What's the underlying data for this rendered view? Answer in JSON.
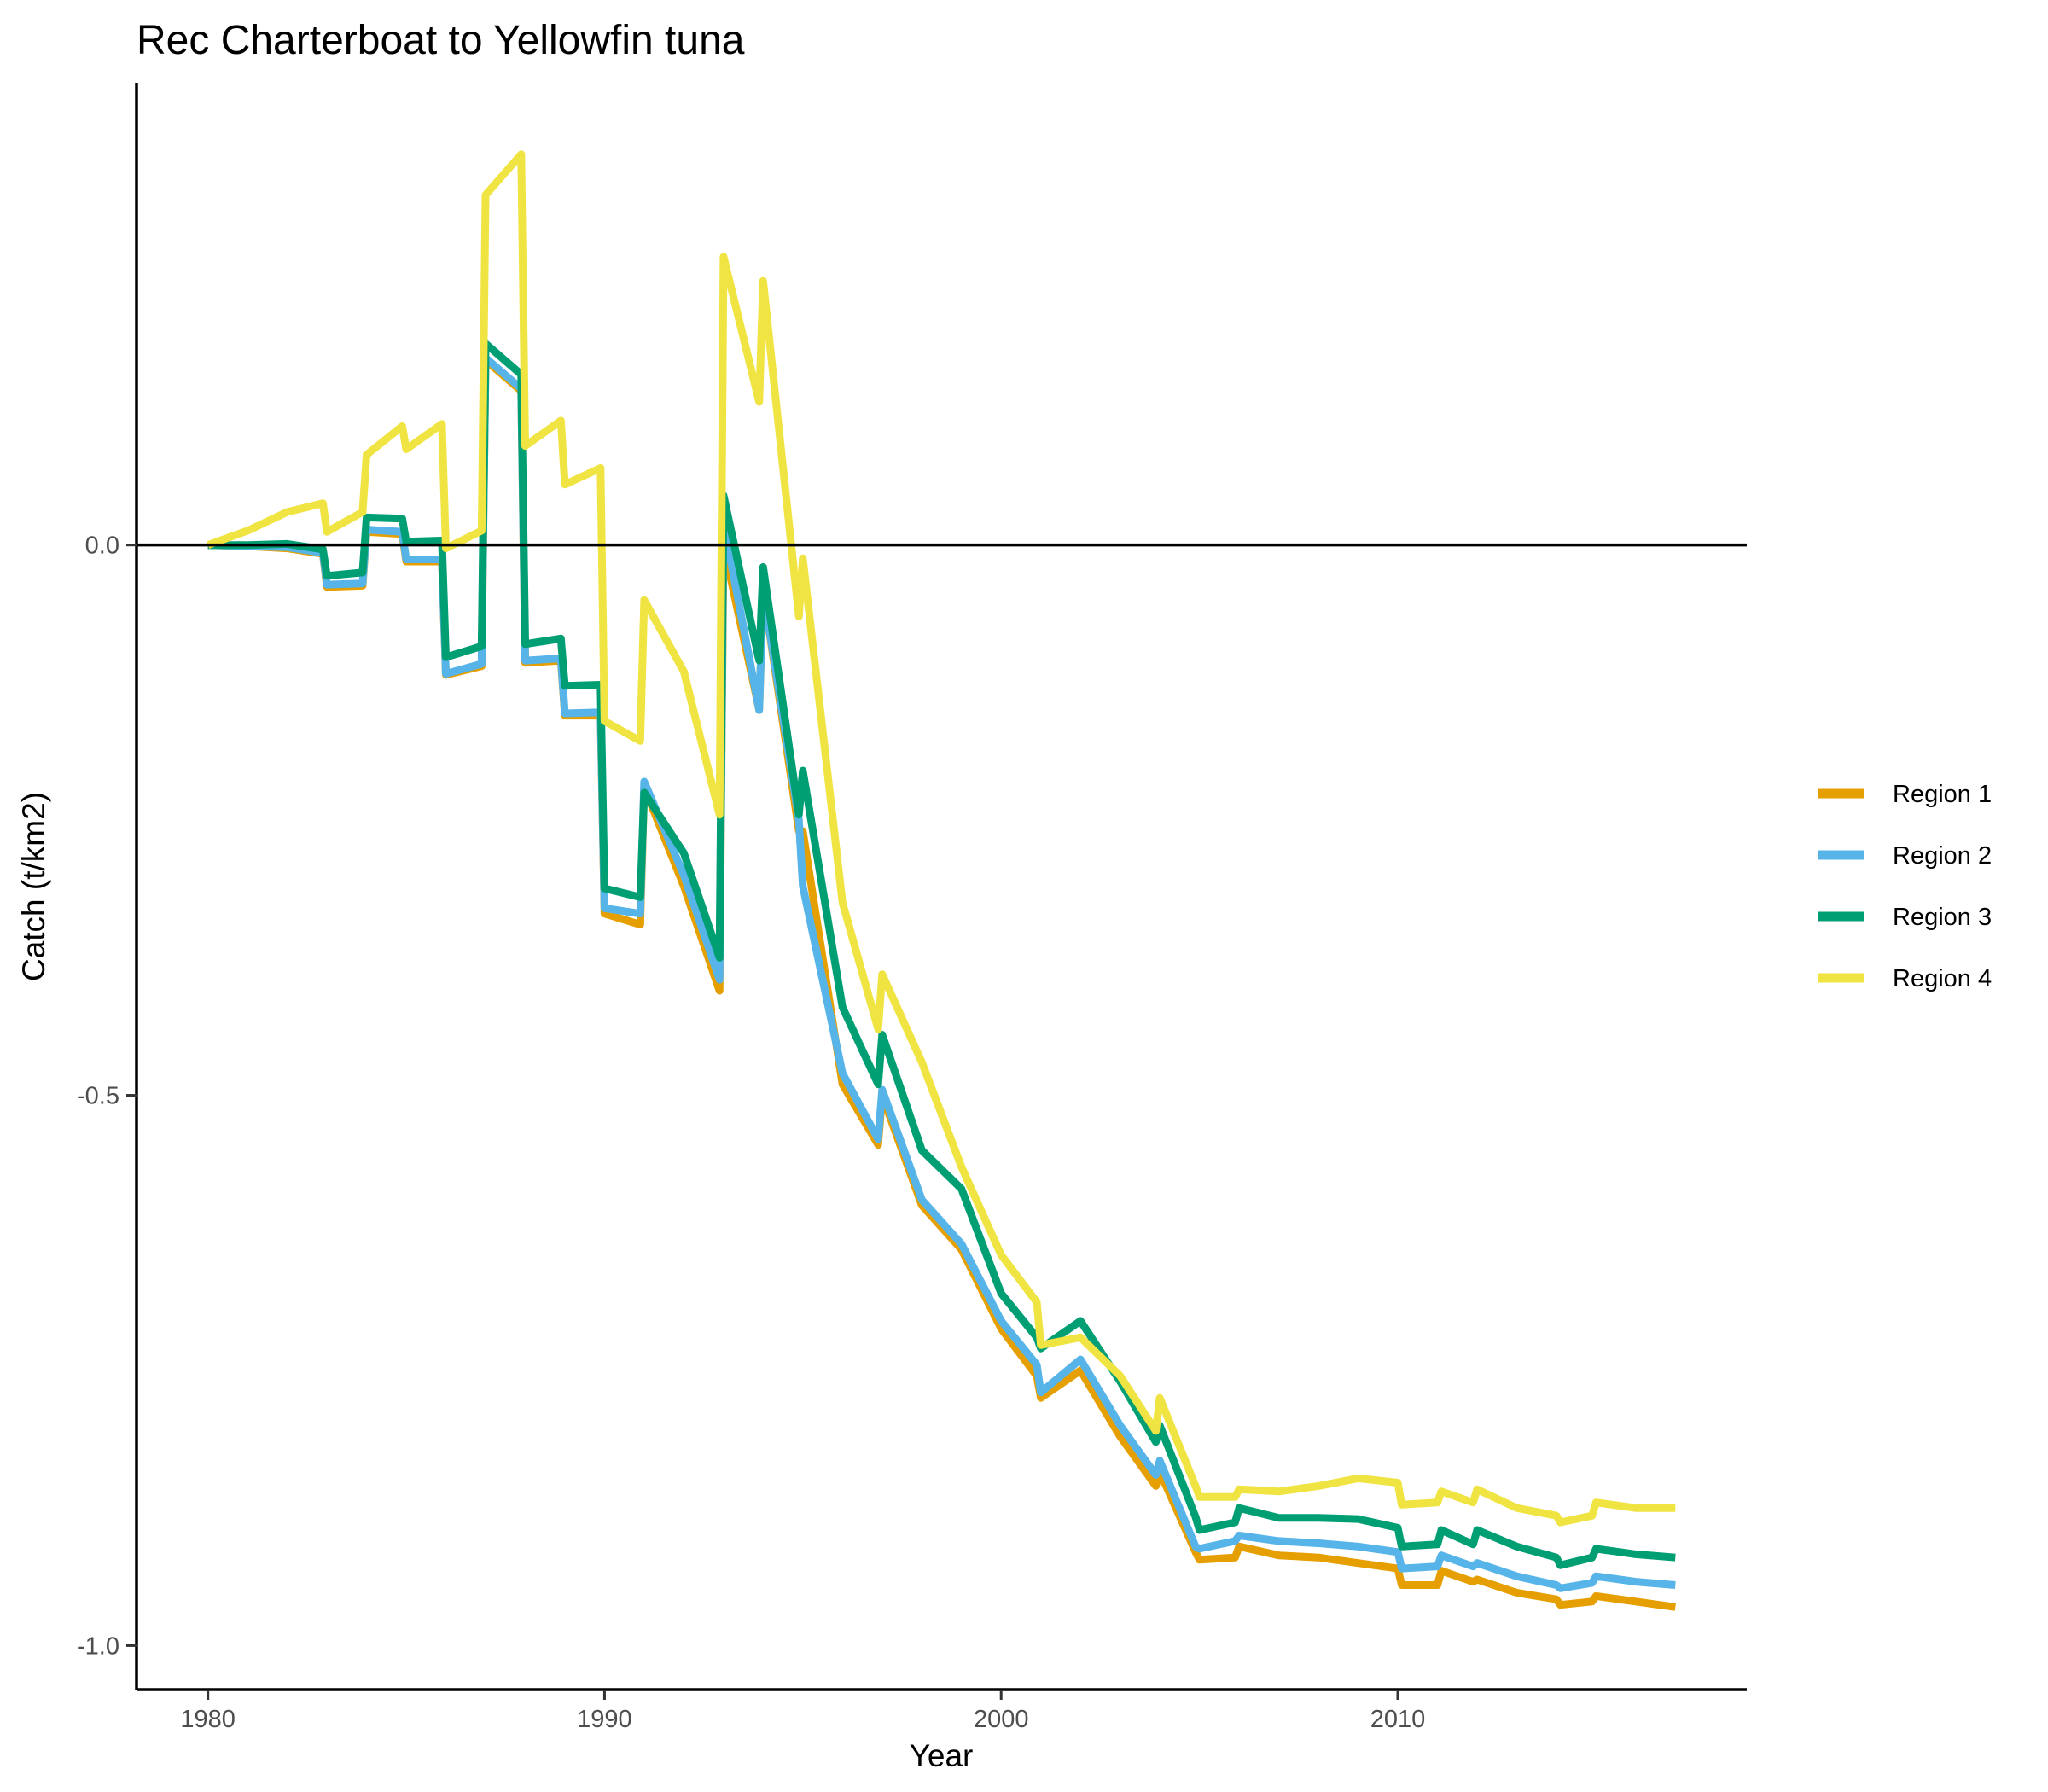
{
  "chart_data": {
    "type": "line",
    "title": "Rec Charterboat to Yellowfin tuna",
    "xlabel": "Year",
    "ylabel": "Catch (t/km2)",
    "xlim": [
      1978.2,
      2018.8
    ],
    "ylim": [
      -1.04,
      0.42
    ],
    "x_ticks": [
      1980,
      1990,
      2000,
      2010
    ],
    "x_tick_labels": [
      "1980",
      "1990",
      "2000",
      "2010"
    ],
    "y_ticks": [
      0.0,
      -0.5,
      -1.0
    ],
    "y_tick_labels": [
      "0.0",
      "-0.5",
      "-1.0"
    ],
    "reference_line_y": 0,
    "grid": false,
    "legend_position": "right",
    "series": [
      {
        "name": "Region 1",
        "color": "#E69F00",
        "points": [
          [
            1980,
            0
          ],
          [
            1981,
            -0.001
          ],
          [
            1982,
            -0.003
          ],
          [
            1982.9,
            -0.008
          ],
          [
            1983,
            -0.038
          ],
          [
            1983.9,
            -0.037
          ],
          [
            1984,
            0.012
          ],
          [
            1984.9,
            0.01
          ],
          [
            1985,
            -0.015
          ],
          [
            1985.9,
            -0.015
          ],
          [
            1986,
            -0.118
          ],
          [
            1986.9,
            -0.11
          ],
          [
            1987,
            0.168
          ],
          [
            1987.9,
            0.14
          ],
          [
            1988,
            -0.107
          ],
          [
            1988.9,
            -0.105
          ],
          [
            1989,
            -0.155
          ],
          [
            1989.9,
            -0.155
          ],
          [
            1990,
            -0.335
          ],
          [
            1990.9,
            -0.345
          ],
          [
            1991,
            -0.22
          ],
          [
            1992,
            -0.31
          ],
          [
            1992.9,
            -0.405
          ],
          [
            1993,
            0.0
          ],
          [
            1993.9,
            -0.15
          ],
          [
            1994,
            -0.04
          ],
          [
            1994.9,
            -0.26
          ],
          [
            1995,
            -0.26
          ],
          [
            1996,
            -0.49
          ],
          [
            1996.9,
            -0.545
          ],
          [
            1997,
            -0.5
          ],
          [
            1998,
            -0.6
          ],
          [
            1999,
            -0.64
          ],
          [
            2000,
            -0.712
          ],
          [
            2000.9,
            -0.755
          ],
          [
            2001,
            -0.775
          ],
          [
            2002,
            -0.75
          ],
          [
            2003,
            -0.81
          ],
          [
            2003.9,
            -0.855
          ],
          [
            2004,
            -0.842
          ],
          [
            2004.9,
            -0.915
          ],
          [
            2005,
            -0.922
          ],
          [
            2005.9,
            -0.92
          ],
          [
            2006,
            -0.91
          ],
          [
            2007,
            -0.918
          ],
          [
            2008,
            -0.92
          ],
          [
            2009,
            -0.925
          ],
          [
            2010,
            -0.93
          ],
          [
            2010.1,
            -0.945
          ],
          [
            2011,
            -0.945
          ],
          [
            2011.1,
            -0.932
          ],
          [
            2011.9,
            -0.942
          ],
          [
            2012,
            -0.94
          ],
          [
            2013,
            -0.952
          ],
          [
            2014,
            -0.958
          ],
          [
            2014.1,
            -0.963
          ],
          [
            2014.9,
            -0.96
          ],
          [
            2015,
            -0.955
          ],
          [
            2016,
            -0.96
          ],
          [
            2017,
            -0.965
          ]
        ]
      },
      {
        "name": "Region 2",
        "color": "#56B4E9",
        "points": [
          [
            1980,
            0
          ],
          [
            1981,
            -0.001
          ],
          [
            1982,
            -0.002
          ],
          [
            1982.9,
            -0.007
          ],
          [
            1983,
            -0.036
          ],
          [
            1983.9,
            -0.035
          ],
          [
            1984,
            0.014
          ],
          [
            1984.9,
            0.012
          ],
          [
            1985,
            -0.013
          ],
          [
            1985.9,
            -0.013
          ],
          [
            1986,
            -0.117
          ],
          [
            1986.9,
            -0.108
          ],
          [
            1987,
            0.17
          ],
          [
            1987.9,
            0.142
          ],
          [
            1988,
            -0.105
          ],
          [
            1988.9,
            -0.103
          ],
          [
            1989,
            -0.153
          ],
          [
            1989.9,
            -0.152
          ],
          [
            1990,
            -0.33
          ],
          [
            1990.9,
            -0.335
          ],
          [
            1991,
            -0.215
          ],
          [
            1992,
            -0.3
          ],
          [
            1992.9,
            -0.395
          ],
          [
            1993,
            0.02
          ],
          [
            1993.9,
            -0.15
          ],
          [
            1994,
            -0.04
          ],
          [
            1994.9,
            -0.25
          ],
          [
            1995,
            -0.31
          ],
          [
            1996,
            -0.48
          ],
          [
            1996.9,
            -0.54
          ],
          [
            1997,
            -0.495
          ],
          [
            1998,
            -0.595
          ],
          [
            1999,
            -0.635
          ],
          [
            2000,
            -0.705
          ],
          [
            2000.9,
            -0.745
          ],
          [
            2001,
            -0.77
          ],
          [
            2002,
            -0.74
          ],
          [
            2003,
            -0.8
          ],
          [
            2003.9,
            -0.845
          ],
          [
            2004,
            -0.832
          ],
          [
            2004.9,
            -0.91
          ],
          [
            2005,
            -0.912
          ],
          [
            2005.9,
            -0.905
          ],
          [
            2006,
            -0.9
          ],
          [
            2007,
            -0.905
          ],
          [
            2008,
            -0.907
          ],
          [
            2009,
            -0.91
          ],
          [
            2010,
            -0.915
          ],
          [
            2010.1,
            -0.93
          ],
          [
            2011,
            -0.928
          ],
          [
            2011.1,
            -0.918
          ],
          [
            2011.9,
            -0.928
          ],
          [
            2012,
            -0.925
          ],
          [
            2013,
            -0.937
          ],
          [
            2014,
            -0.945
          ],
          [
            2014.1,
            -0.948
          ],
          [
            2014.9,
            -0.943
          ],
          [
            2015,
            -0.937
          ],
          [
            2016,
            -0.942
          ],
          [
            2017,
            -0.945
          ]
        ]
      },
      {
        "name": "Region 3",
        "color": "#009E73",
        "points": [
          [
            1980,
            0
          ],
          [
            1981,
            0.0
          ],
          [
            1982,
            0.001
          ],
          [
            1982.9,
            -0.004
          ],
          [
            1983,
            -0.028
          ],
          [
            1983.9,
            -0.025
          ],
          [
            1984,
            0.025
          ],
          [
            1984.9,
            0.024
          ],
          [
            1985,
            0.003
          ],
          [
            1985.9,
            0.004
          ],
          [
            1986,
            -0.102
          ],
          [
            1986.9,
            -0.092
          ],
          [
            1987,
            0.183
          ],
          [
            1987.9,
            0.155
          ],
          [
            1988,
            -0.09
          ],
          [
            1988.9,
            -0.085
          ],
          [
            1989,
            -0.128
          ],
          [
            1989.9,
            -0.127
          ],
          [
            1990,
            -0.312
          ],
          [
            1990.9,
            -0.32
          ],
          [
            1991,
            -0.225
          ],
          [
            1992,
            -0.28
          ],
          [
            1992.9,
            -0.375
          ],
          [
            1993,
            0.045
          ],
          [
            1993.9,
            -0.105
          ],
          [
            1994,
            -0.02
          ],
          [
            1994.9,
            -0.245
          ],
          [
            1995,
            -0.205
          ],
          [
            1996,
            -0.42
          ],
          [
            1996.9,
            -0.49
          ],
          [
            1997,
            -0.445
          ],
          [
            1998,
            -0.55
          ],
          [
            1999,
            -0.585
          ],
          [
            2000,
            -0.68
          ],
          [
            2000.9,
            -0.72
          ],
          [
            2001,
            -0.73
          ],
          [
            2002,
            -0.705
          ],
          [
            2003,
            -0.76
          ],
          [
            2003.9,
            -0.815
          ],
          [
            2004,
            -0.8
          ],
          [
            2004.9,
            -0.883
          ],
          [
            2005,
            -0.895
          ],
          [
            2005.9,
            -0.888
          ],
          [
            2006,
            -0.875
          ],
          [
            2007,
            -0.884
          ],
          [
            2008,
            -0.884
          ],
          [
            2009,
            -0.885
          ],
          [
            2010,
            -0.893
          ],
          [
            2010.1,
            -0.91
          ],
          [
            2011,
            -0.908
          ],
          [
            2011.1,
            -0.895
          ],
          [
            2011.9,
            -0.908
          ],
          [
            2012,
            -0.895
          ],
          [
            2013,
            -0.91
          ],
          [
            2014,
            -0.92
          ],
          [
            2014.1,
            -0.927
          ],
          [
            2014.9,
            -0.92
          ],
          [
            2015,
            -0.912
          ],
          [
            2016,
            -0.917
          ],
          [
            2017,
            -0.92
          ]
        ]
      },
      {
        "name": "Region 4",
        "color": "#F0E442",
        "points": [
          [
            1980,
            0
          ],
          [
            1981,
            0.013
          ],
          [
            1982,
            0.03
          ],
          [
            1982.9,
            0.038
          ],
          [
            1983,
            0.012
          ],
          [
            1983.9,
            0.03
          ],
          [
            1984,
            0.082
          ],
          [
            1984.9,
            0.108
          ],
          [
            1985,
            0.087
          ],
          [
            1985.9,
            0.11
          ],
          [
            1986,
            -0.003
          ],
          [
            1986.9,
            0.013
          ],
          [
            1987,
            0.318
          ],
          [
            1987.9,
            0.355
          ],
          [
            1988,
            0.09
          ],
          [
            1988.9,
            0.113
          ],
          [
            1989,
            0.055
          ],
          [
            1989.9,
            0.07
          ],
          [
            1990,
            -0.16
          ],
          [
            1990.9,
            -0.178
          ],
          [
            1991,
            -0.05
          ],
          [
            1992,
            -0.115
          ],
          [
            1992.9,
            -0.245
          ],
          [
            1993,
            0.262
          ],
          [
            1993.9,
            0.13
          ],
          [
            1994,
            0.24
          ],
          [
            1994.9,
            -0.065
          ],
          [
            1995,
            -0.012
          ],
          [
            1996,
            -0.325
          ],
          [
            1996.9,
            -0.44
          ],
          [
            1997,
            -0.39
          ],
          [
            1998,
            -0.47
          ],
          [
            1999,
            -0.565
          ],
          [
            2000,
            -0.645
          ],
          [
            2000.9,
            -0.688
          ],
          [
            2001,
            -0.727
          ],
          [
            2002,
            -0.72
          ],
          [
            2003,
            -0.755
          ],
          [
            2003.9,
            -0.805
          ],
          [
            2004,
            -0.775
          ],
          [
            2004.9,
            -0.855
          ],
          [
            2005,
            -0.865
          ],
          [
            2005.9,
            -0.865
          ],
          [
            2006,
            -0.858
          ],
          [
            2007,
            -0.86
          ],
          [
            2008,
            -0.855
          ],
          [
            2009,
            -0.848
          ],
          [
            2010,
            -0.852
          ],
          [
            2010.1,
            -0.872
          ],
          [
            2011,
            -0.87
          ],
          [
            2011.1,
            -0.86
          ],
          [
            2011.9,
            -0.87
          ],
          [
            2012,
            -0.858
          ],
          [
            2013,
            -0.875
          ],
          [
            2014,
            -0.882
          ],
          [
            2014.1,
            -0.888
          ],
          [
            2014.9,
            -0.882
          ],
          [
            2015,
            -0.87
          ],
          [
            2016,
            -0.875
          ],
          [
            2017,
            -0.875
          ]
        ]
      }
    ]
  }
}
